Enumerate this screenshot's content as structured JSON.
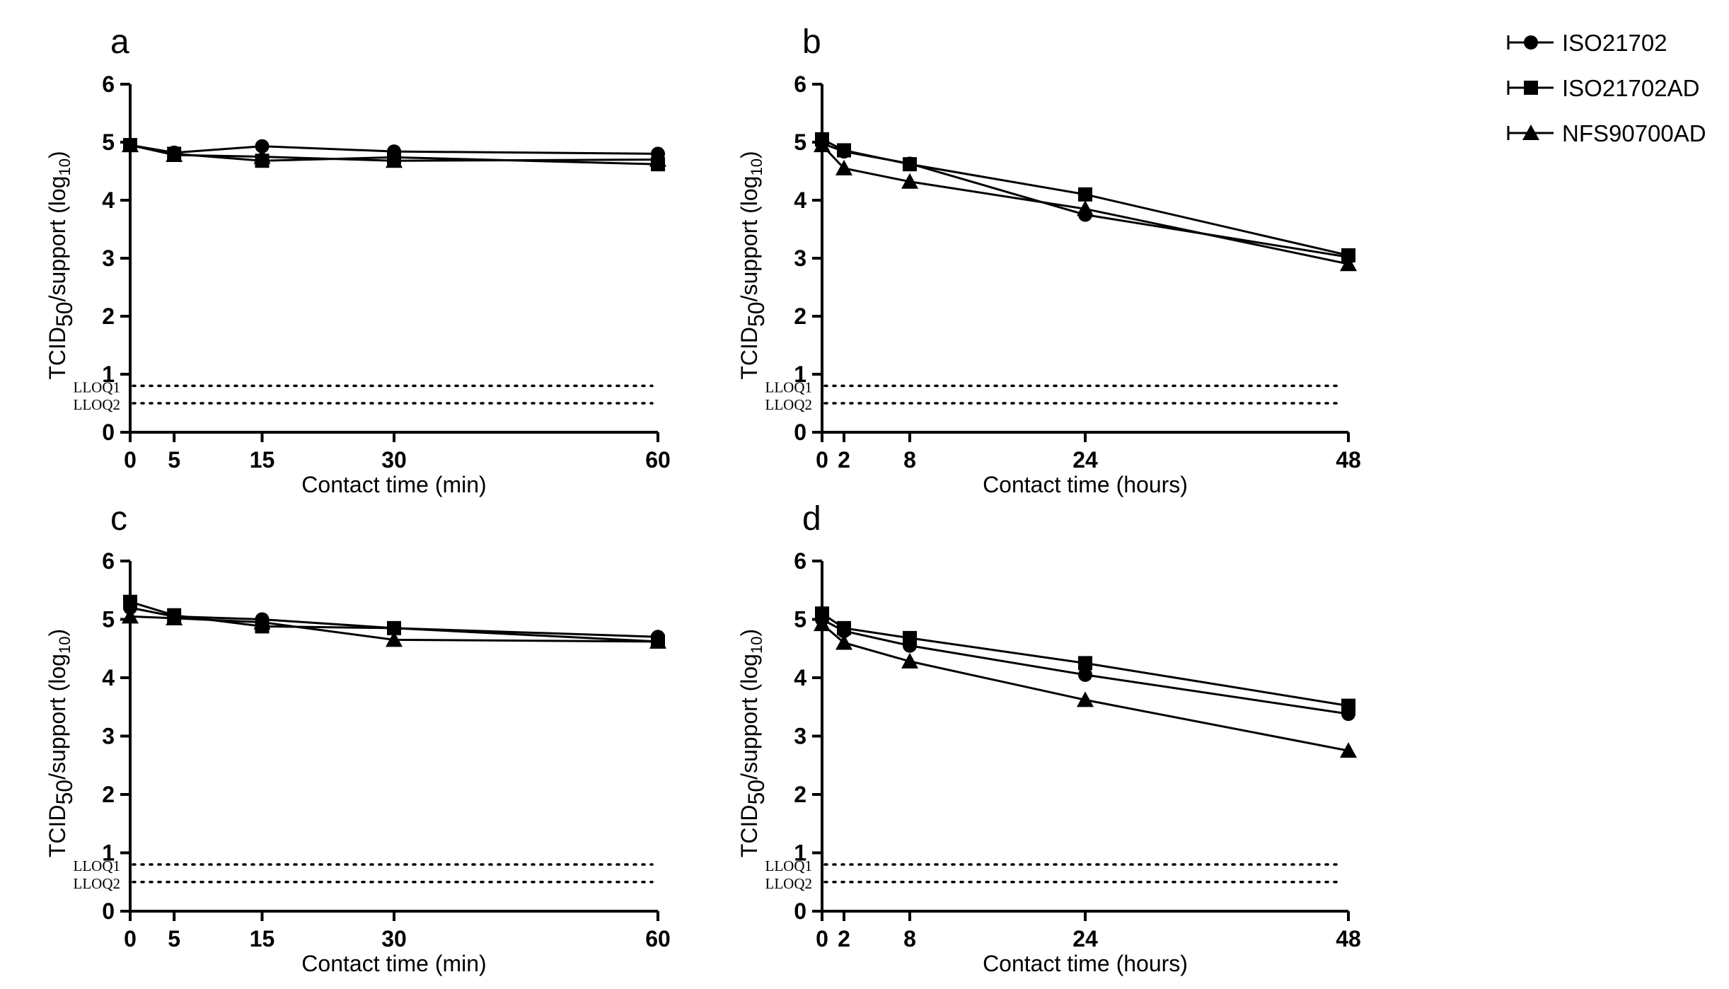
{
  "legend": [
    {
      "label": "ISO21702",
      "marker": "circle"
    },
    {
      "label": "ISO21702AD",
      "marker": "square"
    },
    {
      "label": "NFS90700AD",
      "marker": "triangle"
    }
  ],
  "chart_data": [
    {
      "panel": "a",
      "type": "line",
      "xlabel": "Contact time (min)",
      "ylabel": "TCID50/support (log10)",
      "ylabel_parts": {
        "main": "TCID",
        "sub": "50",
        "rest": "/support (log",
        "sub2": "10",
        "close": ")"
      },
      "xlim": [
        0,
        60
      ],
      "ylim": [
        0,
        6
      ],
      "xticks": [
        0,
        5,
        15,
        30,
        60
      ],
      "yticks": [
        0,
        1,
        2,
        3,
        4,
        5,
        6
      ],
      "lloq": [
        {
          "label": "LLOQ1",
          "value": 0.8
        },
        {
          "label": "LLOQ2",
          "value": 0.5
        }
      ],
      "series": [
        {
          "name": "ISO21702",
          "marker": "circle",
          "x": [
            0,
            5,
            15,
            30,
            60
          ],
          "y": [
            4.95,
            4.82,
            4.93,
            4.84,
            4.8
          ]
        },
        {
          "name": "ISO21702AD",
          "marker": "square",
          "x": [
            0,
            5,
            15,
            30,
            60
          ],
          "y": [
            4.95,
            4.8,
            4.68,
            4.74,
            4.62
          ]
        },
        {
          "name": "NFS90700AD",
          "marker": "triangle",
          "x": [
            0,
            5,
            15,
            30,
            60
          ],
          "y": [
            4.95,
            4.78,
            4.75,
            4.68,
            4.7
          ]
        }
      ]
    },
    {
      "panel": "b",
      "type": "line",
      "xlabel": "Contact time (hours)",
      "ylabel": "TCID50/support (log10)",
      "ylabel_parts": {
        "main": "TCID",
        "sub": "50",
        "rest": "/support (log",
        "sub2": "10",
        "close": ")"
      },
      "xlim": [
        0,
        48
      ],
      "ylim": [
        0,
        6
      ],
      "xticks": [
        0,
        2,
        8,
        24,
        48
      ],
      "yticks": [
        0,
        1,
        2,
        3,
        4,
        5,
        6
      ],
      "lloq": [
        {
          "label": "LLOQ1",
          "value": 0.8
        },
        {
          "label": "LLOQ2",
          "value": 0.5
        }
      ],
      "series": [
        {
          "name": "ISO21702",
          "marker": "circle",
          "x": [
            0,
            2,
            8,
            24,
            48
          ],
          "y": [
            4.98,
            4.84,
            4.63,
            3.75,
            3.02
          ]
        },
        {
          "name": "ISO21702AD",
          "marker": "square",
          "x": [
            0,
            2,
            8,
            24,
            48
          ],
          "y": [
            5.05,
            4.86,
            4.62,
            4.1,
            3.05
          ]
        },
        {
          "name": "NFS90700AD",
          "marker": "triangle",
          "x": [
            0,
            2,
            8,
            24,
            48
          ],
          "y": [
            4.95,
            4.55,
            4.32,
            3.85,
            2.9
          ]
        }
      ]
    },
    {
      "panel": "c",
      "type": "line",
      "xlabel": "Contact time (min)",
      "ylabel": "TCID50/support (log10)",
      "ylabel_parts": {
        "main": "TCID",
        "sub": "50",
        "rest": "/support (log",
        "sub2": "10",
        "close": ")"
      },
      "xlim": [
        0,
        60
      ],
      "ylim": [
        0,
        6
      ],
      "xticks": [
        0,
        5,
        15,
        30,
        60
      ],
      "yticks": [
        0,
        1,
        2,
        3,
        4,
        5,
        6
      ],
      "lloq": [
        {
          "label": "LLOQ1",
          "value": 0.8
        },
        {
          "label": "LLOQ2",
          "value": 0.5
        }
      ],
      "series": [
        {
          "name": "ISO21702",
          "marker": "circle",
          "x": [
            0,
            5,
            15,
            30,
            60
          ],
          "y": [
            5.2,
            5.05,
            5.0,
            4.85,
            4.7
          ]
        },
        {
          "name": "ISO21702AD",
          "marker": "square",
          "x": [
            0,
            5,
            15,
            30,
            60
          ],
          "y": [
            5.3,
            5.07,
            4.88,
            4.85,
            4.62
          ]
        },
        {
          "name": "NFS90700AD",
          "marker": "triangle",
          "x": [
            0,
            5,
            15,
            30,
            60
          ],
          "y": [
            5.05,
            5.02,
            4.95,
            4.65,
            4.62
          ]
        }
      ]
    },
    {
      "panel": "d",
      "type": "line",
      "xlabel": "Contact time (hours)",
      "ylabel": "TCID50/support (log10)",
      "ylabel_parts": {
        "main": "TCID",
        "sub": "50",
        "rest": "/support (log",
        "sub2": "10",
        "close": ")"
      },
      "xlim": [
        0,
        48
      ],
      "ylim": [
        0,
        6
      ],
      "xticks": [
        0,
        2,
        8,
        24,
        48
      ],
      "yticks": [
        0,
        1,
        2,
        3,
        4,
        5,
        6
      ],
      "lloq": [
        {
          "label": "LLOQ1",
          "value": 0.8
        },
        {
          "label": "LLOQ2",
          "value": 0.5
        }
      ],
      "series": [
        {
          "name": "ISO21702",
          "marker": "circle",
          "x": [
            0,
            2,
            8,
            24,
            48
          ],
          "y": [
            5.0,
            4.8,
            4.55,
            4.05,
            3.38
          ]
        },
        {
          "name": "ISO21702AD",
          "marker": "square",
          "x": [
            0,
            2,
            8,
            24,
            48
          ],
          "y": [
            5.1,
            4.85,
            4.68,
            4.25,
            3.52
          ]
        },
        {
          "name": "NFS90700AD",
          "marker": "triangle",
          "x": [
            0,
            2,
            8,
            24,
            48
          ],
          "y": [
            4.92,
            4.6,
            4.28,
            3.62,
            2.75
          ]
        }
      ]
    }
  ]
}
